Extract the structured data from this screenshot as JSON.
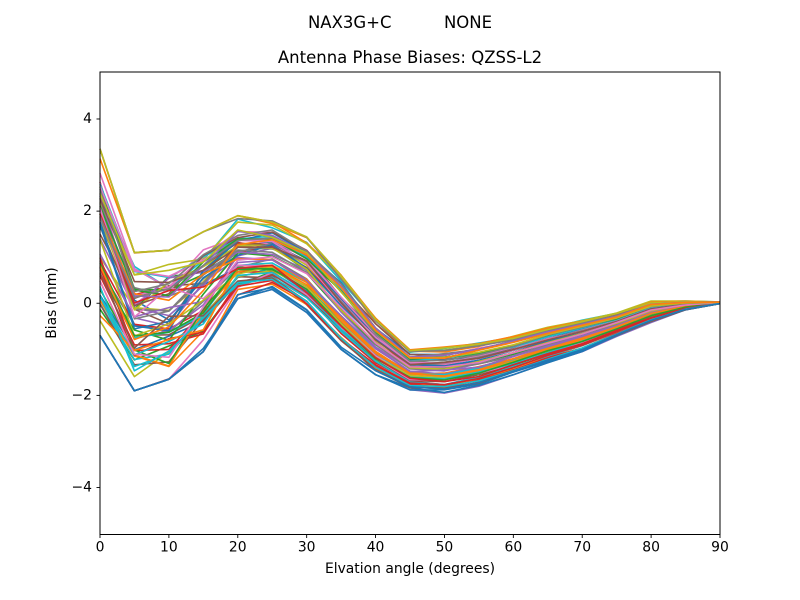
{
  "figure": {
    "suptitle": "NAX3G+C          NONE",
    "background": "#ffffff"
  },
  "chart_data": {
    "type": "line",
    "title": "Antenna Phase Biases: QZSS-L2",
    "xlabel": "Elvation angle (degrees)",
    "ylabel": "Bias (mm)",
    "xlim": [
      0,
      90
    ],
    "ylim": [
      -5.02,
      5.02
    ],
    "grid": false,
    "legend": false,
    "x_ticks": [
      0,
      10,
      20,
      30,
      40,
      50,
      60,
      70,
      80,
      90
    ],
    "x_tick_labels": [
      "0",
      "10",
      "20",
      "30",
      "40",
      "50",
      "60",
      "70",
      "80",
      "90"
    ],
    "y_ticks": [
      -4,
      -2,
      0,
      2,
      4
    ],
    "y_tick_labels": [
      "−4",
      "−2",
      "0",
      "2",
      "4"
    ],
    "x": [
      0,
      5,
      10,
      15,
      20,
      25,
      30,
      35,
      40,
      45,
      50,
      55,
      60,
      65,
      70,
      75,
      80,
      85,
      90
    ],
    "mean_curve": [
      1.33,
      -0.4,
      -0.25,
      0.25,
      1.0,
      1.05,
      0.63,
      -0.18,
      -0.93,
      -1.44,
      -1.45,
      -1.33,
      -1.13,
      -0.9,
      -0.7,
      -0.46,
      -0.19,
      -0.05,
      0.01
    ],
    "upper_envelope": [
      3.35,
      1.1,
      1.15,
      1.55,
      1.9,
      1.8,
      1.45,
      0.65,
      -0.3,
      -1.0,
      -0.95,
      -0.85,
      -0.7,
      -0.5,
      -0.35,
      -0.2,
      0.05,
      0.05,
      0.03
    ],
    "lower_envelope": [
      -0.7,
      -1.9,
      -1.65,
      -1.05,
      0.1,
      0.3,
      -0.2,
      -1.0,
      -1.55,
      -1.88,
      -1.95,
      -1.8,
      -1.55,
      -1.3,
      -1.05,
      -0.72,
      -0.42,
      -0.15,
      -0.01
    ],
    "ensemble": {
      "description": "Bundle of per-satellite/per-session phase-bias curves, all converging to 0 mm at 90 degrees",
      "n_lines": 72,
      "seed": 7,
      "line_width": 1.6,
      "colors": [
        "#1f77b4",
        "#ff7f0e",
        "#2ca02c",
        "#d62728",
        "#9467bd",
        "#8c564b",
        "#e377c2",
        "#7f7f7f",
        "#bcbd22",
        "#17becf"
      ],
      "rank_shift_weight": [
        0.42,
        0.38,
        0.42,
        0.3,
        0.18,
        0.12,
        0.1,
        0.09,
        0.08,
        0.07,
        0.07,
        0.06,
        0.06,
        0.05,
        0.05,
        0.04,
        0.03,
        0.02,
        0.0
      ],
      "point_jitter": [
        0.1,
        0.12,
        0.14,
        0.1,
        0.07,
        0.05,
        0.05,
        0.05,
        0.04,
        0.04,
        0.04,
        0.03,
        0.03,
        0.03,
        0.02,
        0.02,
        0.02,
        0.01,
        0.0
      ]
    },
    "axis_color": "#000000"
  }
}
